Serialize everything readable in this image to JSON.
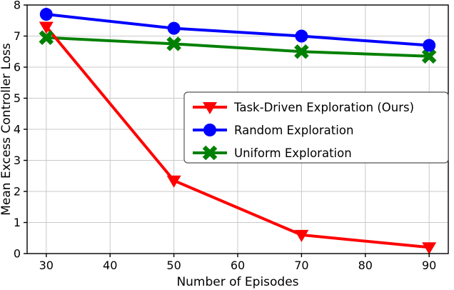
{
  "chart_data": {
    "type": "line",
    "title": "",
    "xlabel": "Number of Episodes",
    "ylabel": "Mean Excess Controller Loss",
    "x": [
      30,
      50,
      70,
      90
    ],
    "x_ticks": [
      30,
      40,
      50,
      60,
      70,
      80,
      90
    ],
    "y_ticks": [
      0,
      1,
      2,
      3,
      4,
      5,
      6,
      7,
      8
    ],
    "xlim": [
      27,
      93
    ],
    "ylim": [
      0,
      8
    ],
    "grid": true,
    "grid_color": "#c9c9c9",
    "frame_color": "#000000",
    "legend_position": "center right",
    "series": [
      {
        "name": "Task-Driven Exploration (Ours)",
        "color": "#ff0000",
        "marker": "triangle-down",
        "values": [
          7.3,
          2.35,
          0.6,
          0.2
        ]
      },
      {
        "name": "Random Exploration",
        "color": "#0000ff",
        "marker": "circle",
        "values": [
          7.7,
          7.25,
          7.0,
          6.7
        ]
      },
      {
        "name": "Uniform Exploration",
        "color": "#008000",
        "marker": "x",
        "values": [
          6.95,
          6.75,
          6.5,
          6.35
        ]
      }
    ]
  }
}
